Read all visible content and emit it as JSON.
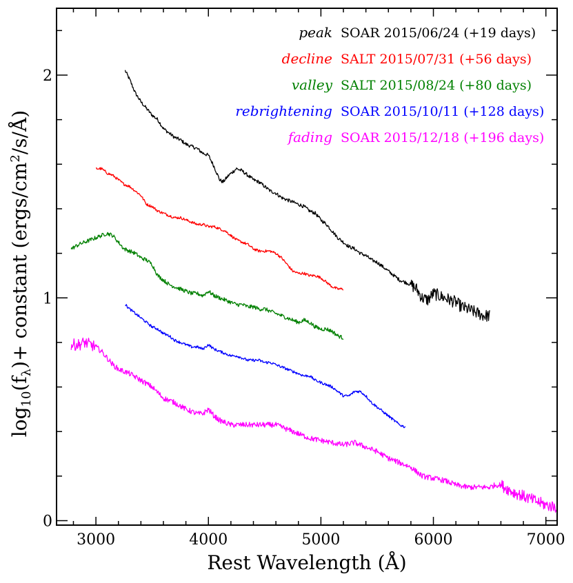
{
  "chart_data": {
    "type": "line",
    "title": "",
    "xlabel": "Rest Wavelength (Å)",
    "ylabel": "log10(fλ) + constant (ergs/cm²/s/Å)",
    "ylabel_parts": {
      "log": "log",
      "sub10": "10",
      "paren_f": "(f",
      "lambda": "λ",
      "mid": ")+ constant (ergs/cm",
      "sup2": "2",
      "tail": "/s/Å)"
    },
    "xlim": [
      2650,
      7100
    ],
    "ylim": [
      -0.02,
      2.3
    ],
    "x_ticks": [
      3000,
      4000,
      5000,
      6000,
      7000
    ],
    "y_ticks": [
      0,
      1,
      2
    ],
    "x_tick_labels": [
      "3000",
      "4000",
      "5000",
      "6000",
      "7000"
    ],
    "y_tick_labels": [
      "0",
      "1",
      "2"
    ],
    "grid": false,
    "legend_position": "top-right",
    "series": [
      {
        "name": "peak",
        "label": "SOAR 2015/06/24 (+19 days)",
        "color": "#000000",
        "noise": 0.008,
        "x": [
          3260,
          3300,
          3350,
          3400,
          3450,
          3500,
          3550,
          3600,
          3650,
          3700,
          3750,
          3800,
          3850,
          3900,
          3950,
          4000,
          4050,
          4100,
          4130,
          4180,
          4250,
          4300,
          4350,
          4400,
          4450,
          4500,
          4550,
          4600,
          4650,
          4700,
          4750,
          4800,
          4850,
          4900,
          4950,
          5000,
          5050,
          5100,
          5150,
          5200,
          5250,
          5300,
          5350,
          5400,
          5450,
          5500,
          5550,
          5600,
          5650,
          5700,
          5750,
          5800,
          5850,
          5900,
          5950,
          6000,
          6050,
          6100,
          6150,
          6200,
          6250,
          6300,
          6350,
          6400,
          6450,
          6500
        ],
        "y": [
          2.02,
          1.98,
          1.92,
          1.88,
          1.85,
          1.82,
          1.8,
          1.76,
          1.74,
          1.72,
          1.71,
          1.69,
          1.68,
          1.67,
          1.65,
          1.64,
          1.59,
          1.53,
          1.52,
          1.55,
          1.58,
          1.57,
          1.55,
          1.53,
          1.52,
          1.5,
          1.48,
          1.47,
          1.45,
          1.44,
          1.43,
          1.42,
          1.41,
          1.39,
          1.38,
          1.35,
          1.33,
          1.3,
          1.27,
          1.25,
          1.23,
          1.22,
          1.2,
          1.19,
          1.17,
          1.16,
          1.14,
          1.12,
          1.1,
          1.08,
          1.07,
          1.06,
          1.04,
          1.0,
          0.99,
          1.02,
          1.01,
          1.0,
          0.99,
          0.98,
          0.96,
          0.95,
          0.94,
          0.93,
          0.92,
          0.92
        ]
      },
      {
        "name": "decline",
        "label": "SALT 2015/07/31 (+56 days)",
        "color": "#ff0000",
        "noise": 0.006,
        "x": [
          3000,
          3050,
          3100,
          3150,
          3200,
          3250,
          3300,
          3350,
          3400,
          3450,
          3500,
          3550,
          3600,
          3650,
          3700,
          3750,
          3800,
          3850,
          3900,
          3950,
          4000,
          4050,
          4100,
          4150,
          4200,
          4250,
          4300,
          4350,
          4400,
          4450,
          4500,
          4550,
          4600,
          4650,
          4700,
          4750,
          4800,
          4850,
          4900,
          4950,
          5000,
          5050,
          5100,
          5150,
          5200
        ],
        "y": [
          1.58,
          1.58,
          1.56,
          1.55,
          1.53,
          1.51,
          1.5,
          1.48,
          1.46,
          1.42,
          1.41,
          1.39,
          1.38,
          1.37,
          1.36,
          1.36,
          1.35,
          1.34,
          1.33,
          1.33,
          1.32,
          1.32,
          1.31,
          1.3,
          1.28,
          1.26,
          1.25,
          1.24,
          1.22,
          1.21,
          1.21,
          1.21,
          1.2,
          1.18,
          1.15,
          1.12,
          1.11,
          1.11,
          1.1,
          1.1,
          1.09,
          1.07,
          1.05,
          1.04,
          1.04
        ]
      },
      {
        "name": "valley",
        "label": "SALT 2015/08/24 (+80 days)",
        "color": "#008000",
        "noise": 0.009,
        "x": [
          2780,
          2850,
          2900,
          2950,
          3000,
          3050,
          3100,
          3150,
          3200,
          3250,
          3300,
          3350,
          3400,
          3450,
          3500,
          3550,
          3600,
          3650,
          3700,
          3750,
          3800,
          3850,
          3900,
          3950,
          4000,
          4050,
          4100,
          4150,
          4200,
          4250,
          4300,
          4350,
          4400,
          4450,
          4500,
          4550,
          4600,
          4650,
          4700,
          4750,
          4800,
          4850,
          4900,
          4950,
          5000,
          5050,
          5100,
          5150,
          5200
        ],
        "y": [
          1.22,
          1.24,
          1.25,
          1.26,
          1.27,
          1.28,
          1.29,
          1.28,
          1.25,
          1.22,
          1.21,
          1.2,
          1.18,
          1.17,
          1.15,
          1.1,
          1.08,
          1.06,
          1.05,
          1.04,
          1.03,
          1.02,
          1.02,
          1.01,
          1.03,
          1.01,
          1.0,
          0.99,
          0.98,
          0.97,
          0.97,
          0.96,
          0.96,
          0.95,
          0.95,
          0.94,
          0.93,
          0.92,
          0.91,
          0.9,
          0.89,
          0.9,
          0.89,
          0.87,
          0.86,
          0.86,
          0.85,
          0.83,
          0.82
        ]
      },
      {
        "name": "rebrightening",
        "label": "SOAR 2015/10/11 (+128 days)",
        "color": "#0000ff",
        "noise": 0.006,
        "x": [
          3260,
          3300,
          3350,
          3400,
          3450,
          3500,
          3550,
          3600,
          3650,
          3700,
          3750,
          3800,
          3850,
          3900,
          3950,
          4000,
          4050,
          4100,
          4150,
          4200,
          4250,
          4300,
          4350,
          4400,
          4450,
          4500,
          4550,
          4600,
          4650,
          4700,
          4750,
          4800,
          4850,
          4900,
          4950,
          5000,
          5050,
          5100,
          5150,
          5200,
          5250,
          5300,
          5350,
          5400,
          5450,
          5500,
          5550,
          5600,
          5650,
          5700,
          5750
        ],
        "y": [
          0.97,
          0.95,
          0.93,
          0.91,
          0.89,
          0.87,
          0.86,
          0.84,
          0.83,
          0.81,
          0.8,
          0.79,
          0.78,
          0.78,
          0.77,
          0.79,
          0.77,
          0.76,
          0.75,
          0.74,
          0.74,
          0.73,
          0.72,
          0.72,
          0.72,
          0.71,
          0.71,
          0.7,
          0.69,
          0.68,
          0.67,
          0.66,
          0.65,
          0.65,
          0.63,
          0.62,
          0.61,
          0.6,
          0.58,
          0.56,
          0.56,
          0.58,
          0.58,
          0.56,
          0.53,
          0.51,
          0.49,
          0.47,
          0.45,
          0.43,
          0.42
        ]
      },
      {
        "name": "fading",
        "label": "SOAR 2015/12/18 (+196 days)",
        "color": "#ff00ff",
        "noise": 0.012,
        "x": [
          2780,
          2850,
          2900,
          2950,
          3000,
          3050,
          3100,
          3150,
          3200,
          3300,
          3400,
          3500,
          3600,
          3700,
          3800,
          3900,
          3950,
          4000,
          4050,
          4100,
          4150,
          4200,
          4300,
          4400,
          4500,
          4600,
          4700,
          4800,
          4900,
          5000,
          5100,
          5200,
          5300,
          5400,
          5500,
          5600,
          5700,
          5800,
          5850,
          5900,
          6000,
          6100,
          6200,
          6300,
          6400,
          6500,
          6550,
          6600,
          6700,
          6800,
          6900,
          7000,
          7100
        ],
        "y": [
          0.79,
          0.79,
          0.8,
          0.79,
          0.78,
          0.76,
          0.73,
          0.7,
          0.68,
          0.66,
          0.63,
          0.6,
          0.55,
          0.53,
          0.5,
          0.48,
          0.48,
          0.5,
          0.47,
          0.45,
          0.44,
          0.43,
          0.43,
          0.43,
          0.43,
          0.43,
          0.41,
          0.39,
          0.37,
          0.36,
          0.35,
          0.34,
          0.35,
          0.33,
          0.31,
          0.28,
          0.26,
          0.24,
          0.22,
          0.2,
          0.19,
          0.18,
          0.16,
          0.15,
          0.15,
          0.15,
          0.16,
          0.16,
          0.13,
          0.11,
          0.09,
          0.07,
          0.06
        ]
      }
    ]
  }
}
